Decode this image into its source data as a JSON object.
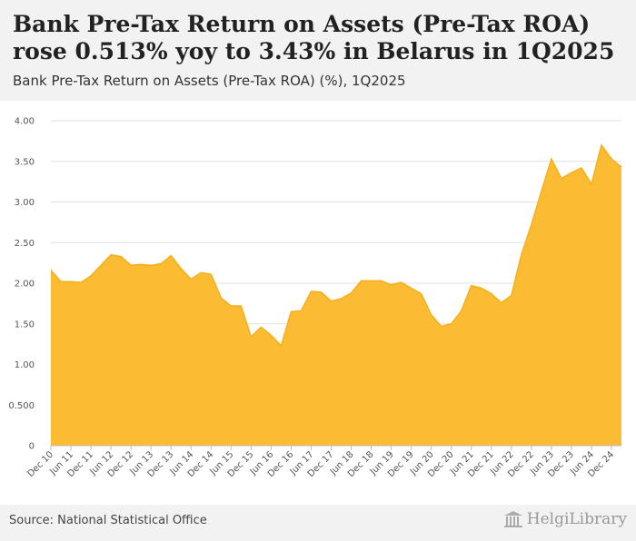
{
  "header": {
    "title": "Bank Pre-Tax Return on Assets (Pre-Tax ROA) rose 0.513% yoy to 3.43% in Belarus in 1Q2025",
    "subtitle": "Bank Pre-Tax Return on Assets (Pre-Tax ROA) (%), 1Q2025"
  },
  "footer": {
    "source": "Source: National Statistical Office",
    "brand": "HelgiLibrary"
  },
  "colors": {
    "area_fill": "#fbbc34",
    "area_stroke": "#f5b01a",
    "grid": "#e0e0e0",
    "axis": "#bbbbbb"
  },
  "chart_data": {
    "type": "area",
    "title": "Bank Pre-Tax Return on Assets (Pre-Tax ROA) (%), 1Q2025",
    "xlabel": "",
    "ylabel": "%",
    "ylim": [
      0,
      4.0
    ],
    "y_ticks": [
      "0",
      "0.500",
      "1.00",
      "1.50",
      "2.00",
      "2.50",
      "3.00",
      "3.50",
      "4.00"
    ],
    "y_tick_values": [
      0,
      0.5,
      1.0,
      1.5,
      2.0,
      2.5,
      3.0,
      3.5,
      4.0
    ],
    "x_tick_labels": [
      "Dec 10",
      "Jun 11",
      "Dec 11",
      "Jun 12",
      "Dec 12",
      "Jun 13",
      "Dec 13",
      "Jun 14",
      "Dec 14",
      "Jun 15",
      "Dec 15",
      "Jun 16",
      "Dec 16",
      "Jun 17",
      "Dec 17",
      "Jun 18",
      "Dec 18",
      "Jun 19",
      "Dec 19",
      "Jun 20",
      "Dec 20",
      "Jun 21",
      "Dec 21",
      "Jun 22",
      "Dec 22",
      "Jun 23",
      "Dec 23",
      "Jun 24",
      "Dec 24"
    ],
    "x": [
      "4Q2010",
      "1Q2011",
      "2Q2011",
      "3Q2011",
      "4Q2011",
      "1Q2012",
      "2Q2012",
      "3Q2012",
      "4Q2012",
      "1Q2013",
      "2Q2013",
      "3Q2013",
      "4Q2013",
      "1Q2014",
      "2Q2014",
      "3Q2014",
      "4Q2014",
      "1Q2015",
      "2Q2015",
      "3Q2015",
      "4Q2015",
      "1Q2016",
      "2Q2016",
      "3Q2016",
      "4Q2016",
      "1Q2017",
      "2Q2017",
      "3Q2017",
      "4Q2017",
      "1Q2018",
      "2Q2018",
      "3Q2018",
      "4Q2018",
      "1Q2019",
      "2Q2019",
      "3Q2019",
      "4Q2019",
      "1Q2020",
      "2Q2020",
      "3Q2020",
      "4Q2020",
      "1Q2021",
      "2Q2021",
      "3Q2021",
      "4Q2021",
      "1Q2022",
      "2Q2022",
      "3Q2022",
      "4Q2022",
      "1Q2023",
      "2Q2023",
      "3Q2023",
      "4Q2023",
      "1Q2024",
      "2Q2024",
      "3Q2024",
      "4Q2024",
      "1Q2025"
    ],
    "series": [
      {
        "name": "Bank Pre-Tax ROA (%)",
        "values": [
          2.16,
          2.02,
          2.02,
          2.01,
          2.09,
          2.22,
          2.35,
          2.33,
          2.22,
          2.23,
          2.22,
          2.24,
          2.34,
          2.18,
          2.05,
          2.13,
          2.11,
          1.82,
          1.72,
          1.72,
          1.34,
          1.46,
          1.36,
          1.23,
          1.65,
          1.66,
          1.9,
          1.89,
          1.78,
          1.81,
          1.88,
          2.03,
          2.03,
          2.03,
          1.98,
          2.01,
          1.94,
          1.87,
          1.61,
          1.47,
          1.5,
          1.66,
          1.97,
          1.94,
          1.87,
          1.76,
          1.85,
          2.35,
          2.72,
          3.13,
          3.53,
          3.29,
          3.36,
          3.42,
          3.22,
          3.7,
          3.53,
          3.43
        ]
      }
    ]
  }
}
